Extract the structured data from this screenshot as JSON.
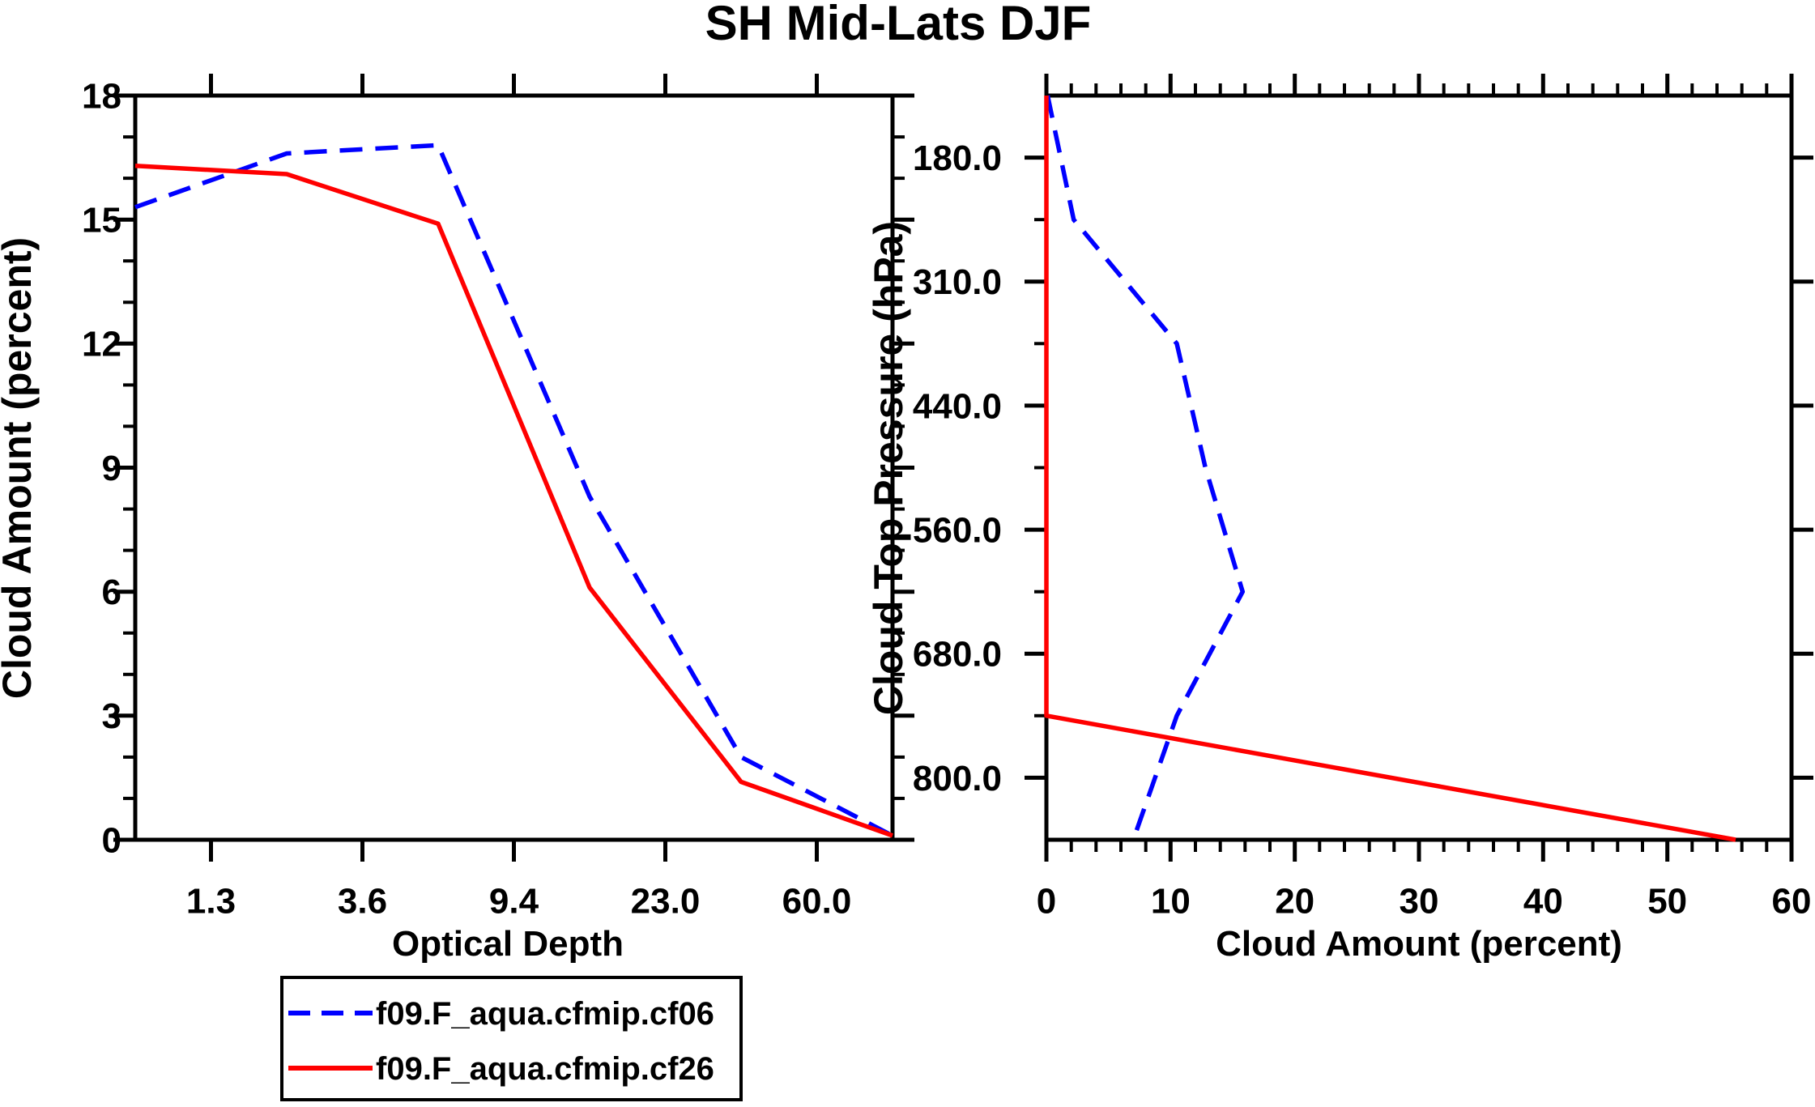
{
  "title": "SH Mid-Lats DJF",
  "colors": {
    "cf06_blue": "#0000ff",
    "cf26_red": "#ff0000",
    "axis": "#000000",
    "background": "#ffffff"
  },
  "legend": {
    "items": [
      {
        "label": "f09.F_aqua.cfmip.cf06",
        "color": "#0000ff",
        "line_style": "dashed"
      },
      {
        "label": "f09.F_aqua.cfmip.cf26",
        "color": "#ff0000",
        "line_style": "solid"
      }
    ]
  },
  "chart_data": [
    {
      "id": "optical-depth-histogram",
      "type": "line",
      "xlabel": "Optical Depth",
      "ylabel": "Cloud Amount (percent)",
      "x_tick_labels": [
        "1.3",
        "3.6",
        "9.4",
        "23.0",
        "60.0"
      ],
      "x_structure": "6 optical-depth bins; points plotted at bin centers, labeled ticks at bin edges",
      "ylim": [
        0,
        18
      ],
      "y_tick_labels": [
        "18",
        "15",
        "12",
        "9",
        "6",
        "3",
        "0"
      ],
      "y_major_step": 3,
      "y_minor_step": 1,
      "series": [
        {
          "name": "f09.F_aqua.cfmip.cf06",
          "color": "#0000ff",
          "style": "dashed",
          "values": [
            15.3,
            16.6,
            16.8,
            8.3,
            2.0,
            0.1
          ]
        },
        {
          "name": "f09.F_aqua.cfmip.cf26",
          "color": "#ff0000",
          "style": "solid",
          "values": [
            16.3,
            16.1,
            14.9,
            6.1,
            1.4,
            0.1
          ]
        }
      ]
    },
    {
      "id": "cloud-top-pressure-profile",
      "type": "line",
      "xlabel": "Cloud Amount (percent)",
      "ylabel": "Cloud Top Pressure (hPa)",
      "xlim": [
        0,
        60
      ],
      "x_tick_labels": [
        "0",
        "10",
        "20",
        "30",
        "40",
        "50",
        "60"
      ],
      "x_minor_step": 2,
      "y_tick_labels": [
        "180.0",
        "310.0",
        "440.0",
        "560.0",
        "680.0",
        "800.0"
      ],
      "pressure_bin_centers_hPa": [
        115,
        245,
        375,
        500,
        620,
        740,
        900
      ],
      "series": [
        {
          "name": "f09.F_aqua.cfmip.cf06",
          "color": "#0000ff",
          "style": "dashed",
          "values": [
            0.1,
            2.2,
            10.5,
            12.8,
            15.8,
            10.5,
            7.0
          ]
        },
        {
          "name": "f09.F_aqua.cfmip.cf26",
          "color": "#ff0000",
          "style": "solid",
          "values": [
            0.0,
            0.0,
            0.0,
            0.0,
            0.0,
            0.0,
            55.5
          ]
        }
      ]
    }
  ]
}
